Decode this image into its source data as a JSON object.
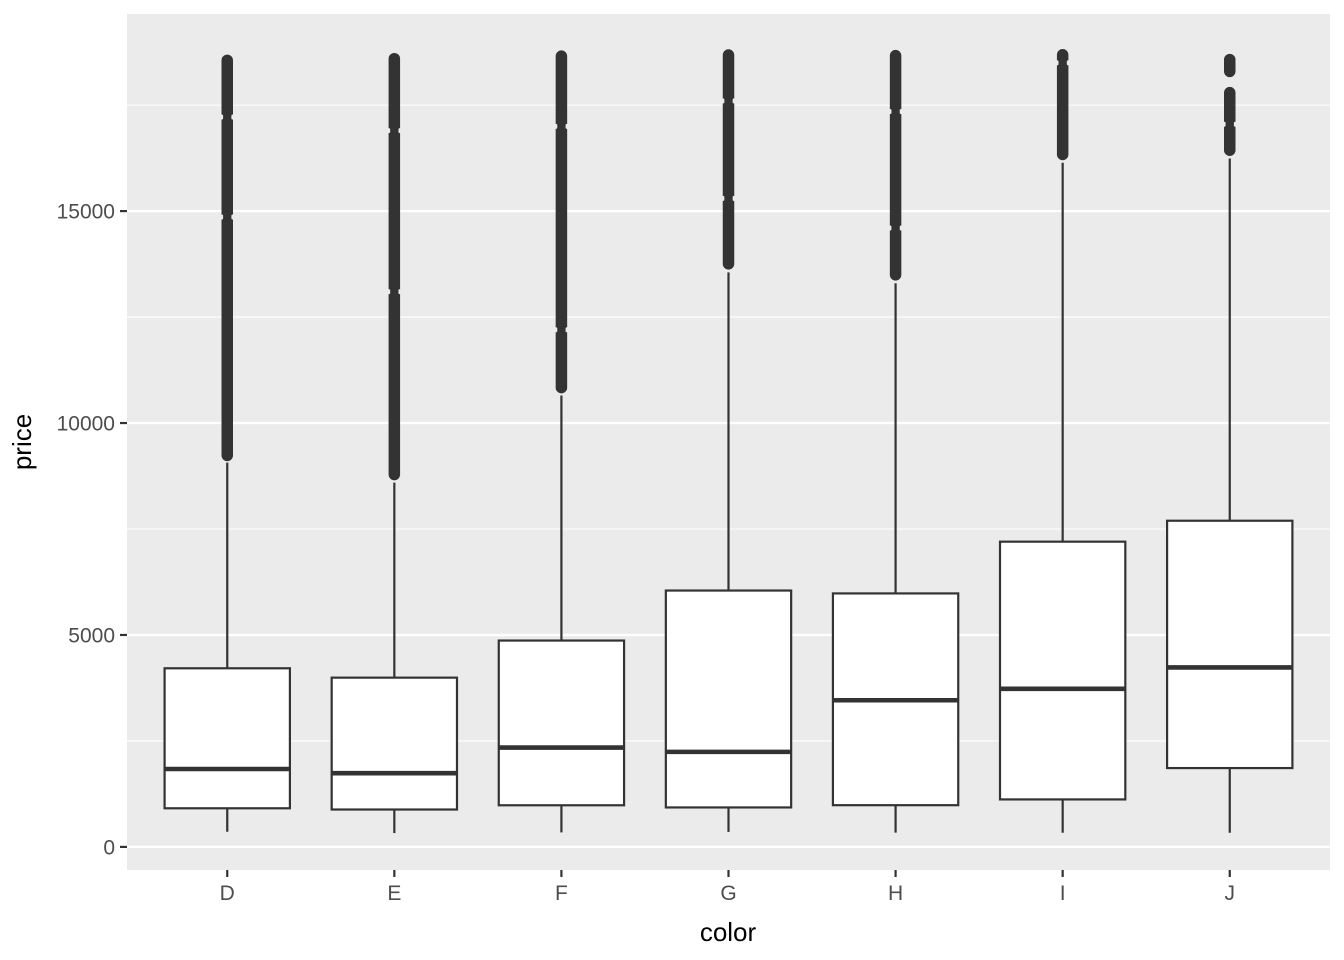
{
  "chart_data": {
    "type": "boxplot",
    "title": "",
    "xlabel": "color",
    "ylabel": "price",
    "categories": [
      "D",
      "E",
      "F",
      "G",
      "H",
      "I",
      "J"
    ],
    "y_ticks": [
      0,
      5000,
      10000,
      15000
    ],
    "y_tick_labels": [
      "0",
      "5000",
      "10000",
      "15000"
    ],
    "y_minor_ticks": [
      2500,
      7500,
      12500,
      17500
    ],
    "ylim": [
      -545,
      19650
    ],
    "grid": "on",
    "legend": "none",
    "series": [
      {
        "category": "D",
        "min": 357,
        "q1": 911,
        "median": 1838,
        "q3": 4214,
        "whisker_high": 9065,
        "max": 18693,
        "outlier_ranges": [
          [
            9100,
            18693
          ]
        ],
        "outlier_pinches": [
          14860,
          17220
        ]
      },
      {
        "category": "E",
        "min": 326,
        "q1": 882,
        "median": 1739,
        "q3": 3993,
        "whisker_high": 8593,
        "max": 18731,
        "outlier_ranges": [
          [
            8650,
            18731
          ]
        ],
        "outlier_pinches": [
          13100,
          16900
        ]
      },
      {
        "category": "F",
        "min": 342,
        "q1": 982,
        "median": 2344,
        "q3": 4868,
        "whisker_high": 10650,
        "max": 18791,
        "outlier_ranges": [
          [
            10700,
            18791
          ]
        ],
        "outlier_pinches": [
          12200,
          17000
        ]
      },
      {
        "category": "G",
        "min": 354,
        "q1": 931,
        "median": 2242,
        "q3": 6048,
        "whisker_high": 13555,
        "max": 18818,
        "outlier_ranges": [
          [
            13620,
            18818
          ]
        ],
        "outlier_pinches": [
          15300,
          17600
        ]
      },
      {
        "category": "H",
        "min": 337,
        "q1": 984,
        "median": 3460,
        "q3": 5980,
        "whisker_high": 13297,
        "max": 18803,
        "outlier_ranges": [
          [
            13360,
            18803
          ]
        ],
        "outlier_pinches": [
          14600,
          17350
        ]
      },
      {
        "category": "I",
        "min": 334,
        "q1": 1120,
        "median": 3730,
        "q3": 7201,
        "whisker_high": 16140,
        "max": 18823,
        "outlier_ranges": [
          [
            16200,
            18823
          ]
        ],
        "outlier_pinches": [
          18500
        ]
      },
      {
        "category": "J",
        "min": 335,
        "q1": 1860,
        "median": 4234,
        "q3": 7695,
        "whisker_high": 16240,
        "max": 18710,
        "outlier_ranges": [
          [
            16300,
            17930
          ],
          [
            18160,
            18710
          ]
        ],
        "outlier_pinches": [
          17050
        ]
      }
    ],
    "colors": {
      "panel_background": "#EBEBEB",
      "grid_line": "#FFFFFF",
      "box_stroke": "#333333",
      "box_fill": "#FFFFFF",
      "median_line": "#333333",
      "whisker_line": "#333333",
      "outlier_point": "#333333",
      "tick_mark": "#333333",
      "tick_text": "#4D4D4D",
      "axis_title_text": "#000000",
      "figure_background": "#FFFFFF"
    }
  }
}
